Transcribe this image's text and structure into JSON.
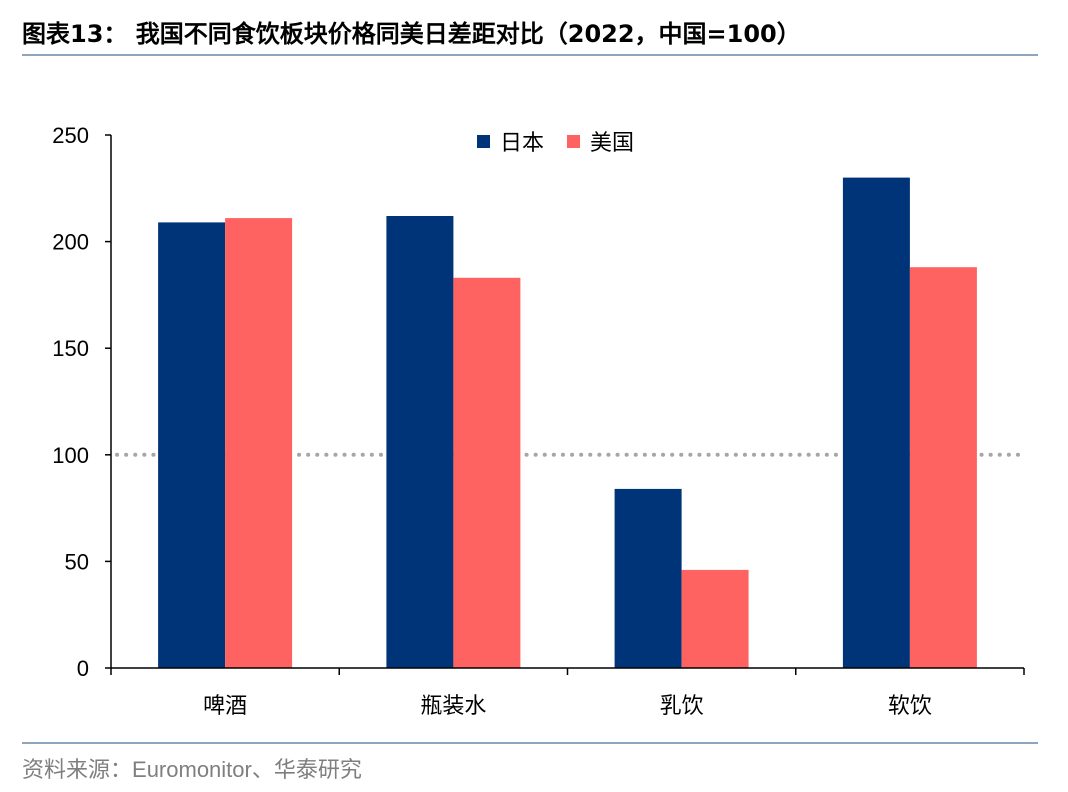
{
  "header": {
    "title": "图表13： 我国不同食饮板块价格同美日差距对比（2022，中国=100）"
  },
  "footer": {
    "source_label": "资料来源：",
    "source_text": "Euromonitor",
    "source_suffix": "、华泰研究"
  },
  "colors": {
    "japan": "#003478",
    "usa": "#FF6361",
    "reference_line": "#A6A6A6",
    "axis": "#000000",
    "rule": "#8FA5BE"
  },
  "chart_data": {
    "type": "bar",
    "title": "",
    "xlabel": "",
    "ylabel": "",
    "categories": [
      "啤酒",
      "瓶装水",
      "乳饮",
      "软饮"
    ],
    "series": [
      {
        "name": "日本",
        "values": [
          209,
          212,
          84,
          230
        ],
        "color": "#003478"
      },
      {
        "name": "美国",
        "values": [
          211,
          183,
          46,
          188
        ],
        "color": "#FF6361"
      }
    ],
    "ylim": [
      0,
      250
    ],
    "yticks": [
      0,
      50,
      100,
      150,
      200,
      250
    ],
    "reference_line": {
      "y": 100,
      "style": "dotted"
    },
    "grid": false,
    "legend_position": "top-center"
  }
}
